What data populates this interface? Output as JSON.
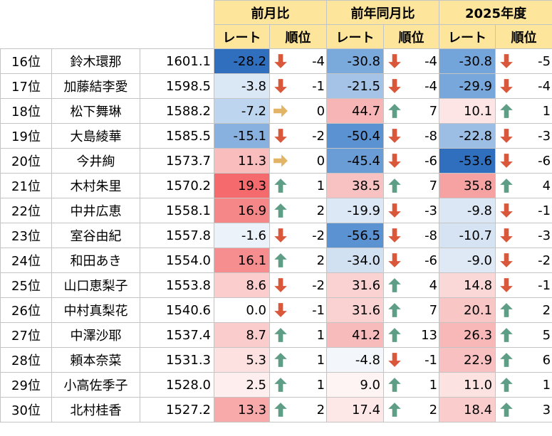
{
  "headers": {
    "group1": "前月比",
    "group2": "前年同月比",
    "group3": "2025年度",
    "rate": "レート",
    "order": "順位"
  },
  "rows": [
    {
      "rank": "16位",
      "name": "鈴木環那",
      "score": "1601.1",
      "m_rate": "-28.2",
      "m_bg": "#2f6fbd",
      "m_dir": "down",
      "m_ord": "-4",
      "y_rate": "-30.8",
      "y_bg": "#7aa9dc",
      "y_dir": "down",
      "y_ord": "-4",
      "f_rate": "-30.8",
      "f_bg": "#73a4da",
      "f_dir": "down",
      "f_ord": "-5"
    },
    {
      "rank": "17位",
      "name": "加藤結李愛",
      "score": "1598.5",
      "m_rate": "-3.8",
      "m_bg": "#dae7f5",
      "m_dir": "down",
      "m_ord": "-1",
      "y_rate": "-21.5",
      "y_bg": "#a4c3e7",
      "y_dir": "down",
      "y_ord": "-4",
      "f_rate": "-29.9",
      "f_bg": "#77a7db",
      "f_dir": "down",
      "f_ord": "-4"
    },
    {
      "rank": "18位",
      "name": "松下舞琳",
      "score": "1588.2",
      "m_rate": "-7.2",
      "m_bg": "#bdd5ee",
      "m_dir": "flat",
      "m_ord": "0",
      "y_rate": "44.7",
      "y_bg": "#f7b5b5",
      "y_dir": "up",
      "y_ord": "7",
      "f_rate": "10.1",
      "f_bg": "#fde5e5",
      "f_dir": "up",
      "f_ord": "1"
    },
    {
      "rank": "19位",
      "name": "大島綾華",
      "score": "1585.5",
      "m_rate": "-15.1",
      "m_bg": "#88b1df",
      "m_dir": "down",
      "m_ord": "-2",
      "y_rate": "-50.4",
      "y_bg": "#5b92d2",
      "y_dir": "down",
      "y_ord": "-8",
      "f_rate": "-22.8",
      "f_bg": "#9cbee4",
      "f_dir": "down",
      "f_ord": "-3"
    },
    {
      "rank": "20位",
      "name": "今井絢",
      "score": "1573.7",
      "m_rate": "11.3",
      "m_bg": "#f9bdbd",
      "m_dir": "flat",
      "m_ord": "0",
      "y_rate": "-45.4",
      "y_bg": "#6a9cd6",
      "y_dir": "down",
      "y_ord": "-6",
      "f_rate": "-53.6",
      "f_bg": "#2f6fbd",
      "f_dir": "down",
      "f_ord": "-6"
    },
    {
      "rank": "21位",
      "name": "木村朱里",
      "score": "1570.2",
      "m_rate": "19.3",
      "m_bg": "#f46a6d",
      "m_dir": "up",
      "m_ord": "1",
      "y_rate": "38.5",
      "y_bg": "#f9c2c2",
      "y_dir": "up",
      "y_ord": "7",
      "f_rate": "35.8",
      "f_bg": "#f6a2a2",
      "f_dir": "up",
      "f_ord": "4"
    },
    {
      "rank": "22位",
      "name": "中井広恵",
      "score": "1558.1",
      "m_rate": "16.9",
      "m_bg": "#f68788",
      "m_dir": "up",
      "m_ord": "2",
      "y_rate": "-19.9",
      "y_bg": "#dce8f5",
      "y_dir": "down",
      "y_ord": "-3",
      "f_rate": "-9.8",
      "f_bg": "#dbe7f5",
      "f_dir": "down",
      "f_ord": "-1"
    },
    {
      "rank": "23位",
      "name": "室谷由紀",
      "score": "1557.8",
      "m_rate": "-1.6",
      "m_bg": "#ecf2fa",
      "m_dir": "down",
      "m_ord": "-2",
      "y_rate": "-56.5",
      "y_bg": "#5b92d2",
      "y_dir": "down",
      "y_ord": "-8",
      "f_rate": "-10.7",
      "f_bg": "#d5e3f3",
      "f_dir": "down",
      "f_ord": "-3"
    },
    {
      "rank": "24位",
      "name": "和田あき",
      "score": "1554.0",
      "m_rate": "16.1",
      "m_bg": "#f68d8e",
      "m_dir": "up",
      "m_ord": "2",
      "y_rate": "-34.0",
      "y_bg": "#d2e1f2",
      "y_dir": "down",
      "y_ord": "-6",
      "f_rate": "-9.0",
      "f_bg": "#dfe9f6",
      "f_dir": "down",
      "f_ord": "-2"
    },
    {
      "rank": "25位",
      "name": "山口恵梨子",
      "score": "1553.8",
      "m_rate": "8.6",
      "m_bg": "#fbcdcd",
      "m_dir": "down",
      "m_ord": "-2",
      "y_rate": "31.6",
      "y_bg": "#fbd2d2",
      "y_dir": "up",
      "y_ord": "4",
      "f_rate": "14.8",
      "f_bg": "#fbd8d8",
      "f_dir": "down",
      "f_ord": "-1"
    },
    {
      "rank": "26位",
      "name": "中村真梨花",
      "score": "1540.6",
      "m_rate": "0.0",
      "m_bg": "#ffffff",
      "m_dir": "down",
      "m_ord": "-1",
      "y_rate": "31.6",
      "y_bg": "#fbd2d2",
      "y_dir": "up",
      "y_ord": "7",
      "f_rate": "20.1",
      "f_bg": "#f9c6c6",
      "f_dir": "up",
      "f_ord": "2"
    },
    {
      "rank": "27位",
      "name": "中澤沙耶",
      "score": "1537.4",
      "m_rate": "8.7",
      "m_bg": "#fbcccc",
      "m_dir": "up",
      "m_ord": "1",
      "y_rate": "41.2",
      "y_bg": "#f8bbbb",
      "y_dir": "up",
      "y_ord": "13",
      "f_rate": "26.3",
      "f_bg": "#f8b8b8",
      "f_dir": "up",
      "f_ord": "5"
    },
    {
      "rank": "28位",
      "name": "頼本奈菜",
      "score": "1531.3",
      "m_rate": "5.3",
      "m_bg": "#fde0e0",
      "m_dir": "up",
      "m_ord": "1",
      "y_rate": "-4.8",
      "y_bg": "#f3f7fc",
      "y_dir": "down",
      "y_ord": "-1",
      "f_rate": "22.9",
      "f_bg": "#f8c0c0",
      "f_dir": "up",
      "f_ord": "6"
    },
    {
      "rank": "29位",
      "name": "小高佐季子",
      "score": "1528.0",
      "m_rate": "2.5",
      "m_bg": "#feeeee",
      "m_dir": "up",
      "m_ord": "1",
      "y_rate": "9.0",
      "y_bg": "#fef4f4",
      "y_dir": "up",
      "y_ord": "1",
      "f_rate": "11.0",
      "f_bg": "#fde2e2",
      "f_dir": "up",
      "f_ord": "1"
    },
    {
      "rank": "30位",
      "name": "北村桂香",
      "score": "1527.2",
      "m_rate": "13.3",
      "m_bg": "#f8a9a9",
      "m_dir": "up",
      "m_ord": "2",
      "y_rate": "17.4",
      "y_bg": "#fde7e7",
      "y_dir": "up",
      "y_ord": "2",
      "f_rate": "18.4",
      "f_bg": "#facccc",
      "f_dir": "up",
      "f_ord": "3"
    }
  ],
  "colors": {
    "header_bg": "#fee59c",
    "arrow_up": "#5f9e86",
    "arrow_down": "#d9573a",
    "arrow_flat": "#e2b466"
  }
}
